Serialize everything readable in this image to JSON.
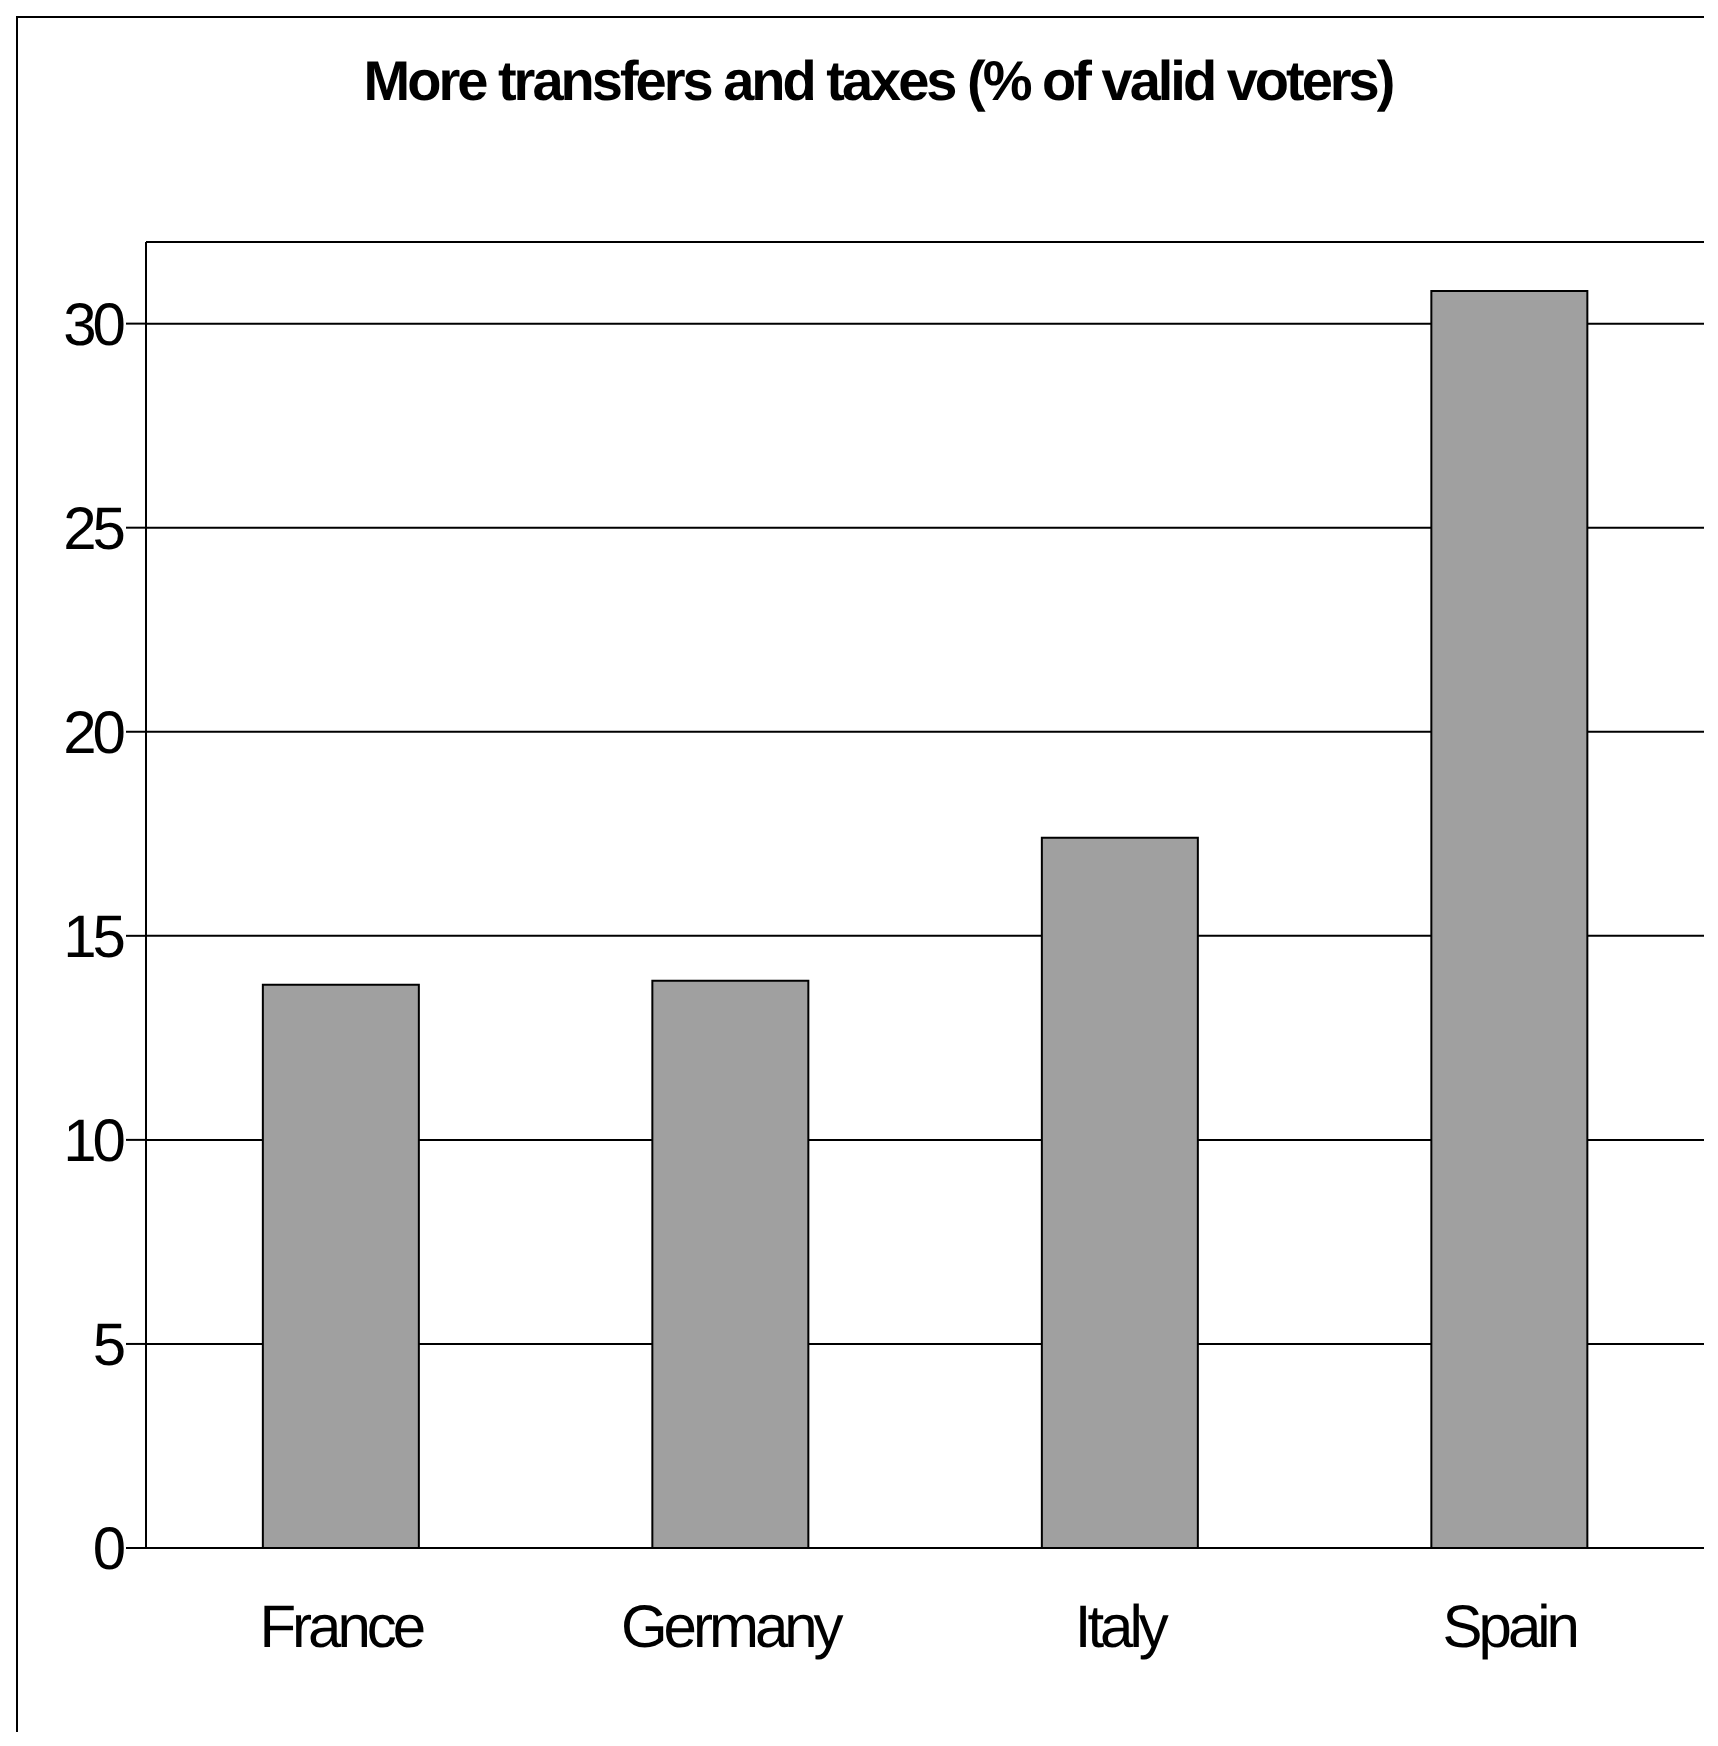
{
  "chart_data": {
    "type": "bar",
    "title": "More transfers and taxes (% of valid voters)",
    "categories": [
      "France",
      "Germany",
      "Italy",
      "Spain"
    ],
    "values": [
      13.8,
      13.9,
      17.4,
      30.8
    ],
    "color": "#a0a0a0",
    "ylim": [
      0,
      32
    ],
    "yticks": [
      0,
      5,
      10,
      15,
      20,
      25,
      30
    ],
    "grid": "y",
    "legend": false
  }
}
